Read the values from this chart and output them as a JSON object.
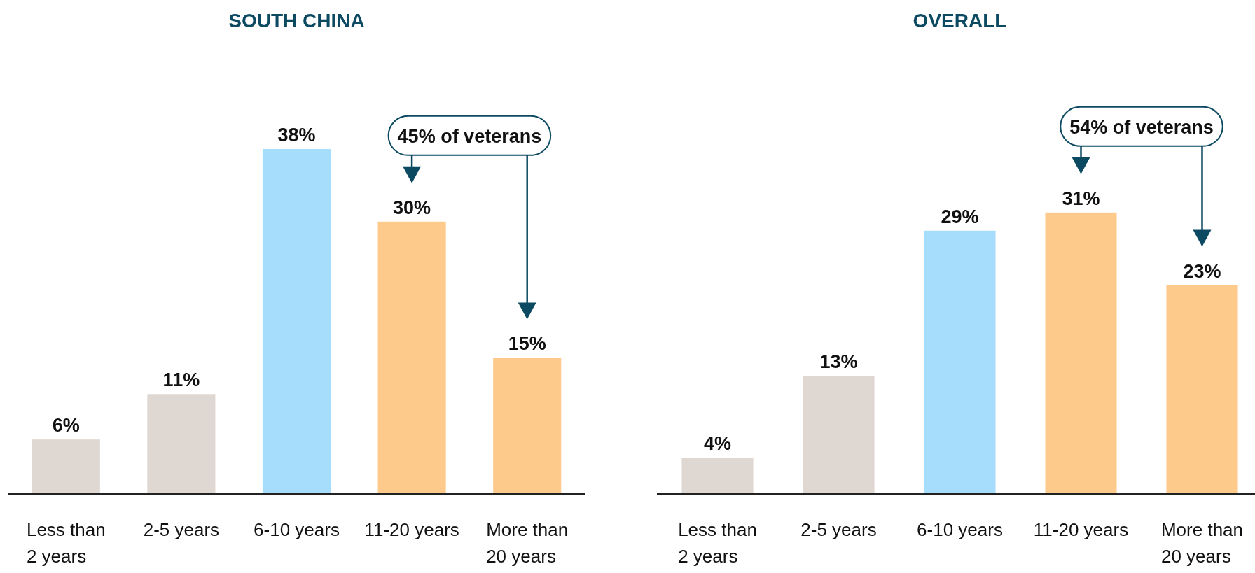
{
  "chart_data": [
    {
      "type": "bar",
      "title": "SOUTH CHINA",
      "categories": [
        "Less than\n2 years",
        "2-5 years",
        "6-10 years",
        "11-20 years",
        "More than\n20 years"
      ],
      "values": [
        6,
        11,
        38,
        30,
        15
      ],
      "colors": [
        "#dfd7d1",
        "#dfd7d1",
        "#a6dcfc",
        "#fdca8c",
        "#fdca8c"
      ],
      "value_labels": [
        "6%",
        "11%",
        "38%",
        "30%",
        "15%"
      ],
      "annotations": [
        "45% of veterans"
      ]
    },
    {
      "type": "bar",
      "title": "OVERALL",
      "categories": [
        "Less than\n2 years",
        "2-5 years",
        "6-10 years",
        "11-20 years",
        "More than\n20 years"
      ],
      "values": [
        4,
        13,
        29,
        31,
        23
      ],
      "colors": [
        "#dfd7d1",
        "#dfd7d1",
        "#a6dcfc",
        "#fdca8c",
        "#fdca8c"
      ],
      "value_labels": [
        "4%",
        "13%",
        "29%",
        "31%",
        "23%"
      ],
      "annotations": [
        "54% of veterans"
      ]
    }
  ]
}
